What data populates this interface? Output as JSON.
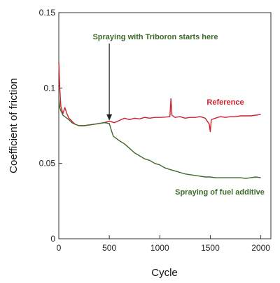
{
  "chart_data": {
    "type": "line",
    "title": "",
    "xlabel": "Cycle",
    "ylabel": "Coefficient of friction",
    "xlim": [
      0,
      2100
    ],
    "ylim": [
      0,
      0.15
    ],
    "x_ticks": [
      0,
      500,
      1000,
      1500,
      2000
    ],
    "y_ticks": [
      0,
      0.05,
      0.1,
      0.15
    ],
    "x_tick_labels": [
      "0",
      "500",
      "1000",
      "1500",
      "2000"
    ],
    "y_tick_labels": [
      "0",
      "0.05",
      "0.1",
      "0.15"
    ],
    "grid": false,
    "legend": "none",
    "series": [
      {
        "name": "Reference",
        "color": "#cc2230",
        "x": [
          0,
          10,
          20,
          40,
          60,
          80,
          100,
          130,
          160,
          200,
          250,
          300,
          350,
          400,
          450,
          500,
          550,
          600,
          650,
          700,
          750,
          800,
          850,
          900,
          950,
          1000,
          1050,
          1100,
          1110,
          1120,
          1150,
          1200,
          1250,
          1300,
          1350,
          1400,
          1450,
          1490,
          1500,
          1510,
          1550,
          1600,
          1650,
          1700,
          1750,
          1800,
          1850,
          1900,
          1950,
          2000
        ],
        "y": [
          0.117,
          0.1,
          0.088,
          0.083,
          0.087,
          0.083,
          0.08,
          0.078,
          0.076,
          0.075,
          0.075,
          0.0755,
          0.076,
          0.0765,
          0.077,
          0.078,
          0.077,
          0.0785,
          0.08,
          0.079,
          0.08,
          0.0795,
          0.0805,
          0.08,
          0.0805,
          0.0805,
          0.0807,
          0.081,
          0.093,
          0.082,
          0.0805,
          0.081,
          0.08,
          0.0805,
          0.0805,
          0.081,
          0.08,
          0.076,
          0.071,
          0.079,
          0.08,
          0.081,
          0.0805,
          0.081,
          0.081,
          0.0815,
          0.0815,
          0.0815,
          0.082,
          0.0825
        ]
      },
      {
        "name": "Spraying of fuel additive",
        "color": "#3d6a2a",
        "x": [
          0,
          10,
          20,
          40,
          60,
          80,
          100,
          130,
          160,
          200,
          250,
          300,
          350,
          400,
          450,
          500,
          520,
          540,
          560,
          580,
          600,
          650,
          700,
          750,
          800,
          850,
          900,
          950,
          1000,
          1050,
          1100,
          1150,
          1200,
          1250,
          1300,
          1350,
          1400,
          1450,
          1500,
          1550,
          1600,
          1650,
          1700,
          1750,
          1800,
          1850,
          1900,
          1950,
          2000
        ],
        "y": [
          0.093,
          0.087,
          0.085,
          0.082,
          0.081,
          0.08,
          0.079,
          0.077,
          0.076,
          0.075,
          0.075,
          0.0755,
          0.076,
          0.0765,
          0.077,
          0.0765,
          0.072,
          0.068,
          0.067,
          0.066,
          0.065,
          0.063,
          0.06,
          0.057,
          0.055,
          0.053,
          0.052,
          0.05,
          0.049,
          0.047,
          0.046,
          0.045,
          0.044,
          0.043,
          0.0425,
          0.042,
          0.0415,
          0.041,
          0.041,
          0.0405,
          0.0405,
          0.0405,
          0.0405,
          0.0405,
          0.0405,
          0.04,
          0.0405,
          0.041,
          0.0405
        ]
      }
    ],
    "annotations": {
      "start_label": "Spraying with Triboron starts here",
      "start_x": 500,
      "start_label_color": "#3d6a2a",
      "reference_label": "Reference",
      "reference_color": "#cc2230",
      "additive_label": "Spraying of fuel additive",
      "additive_color": "#3d6a2a"
    }
  }
}
